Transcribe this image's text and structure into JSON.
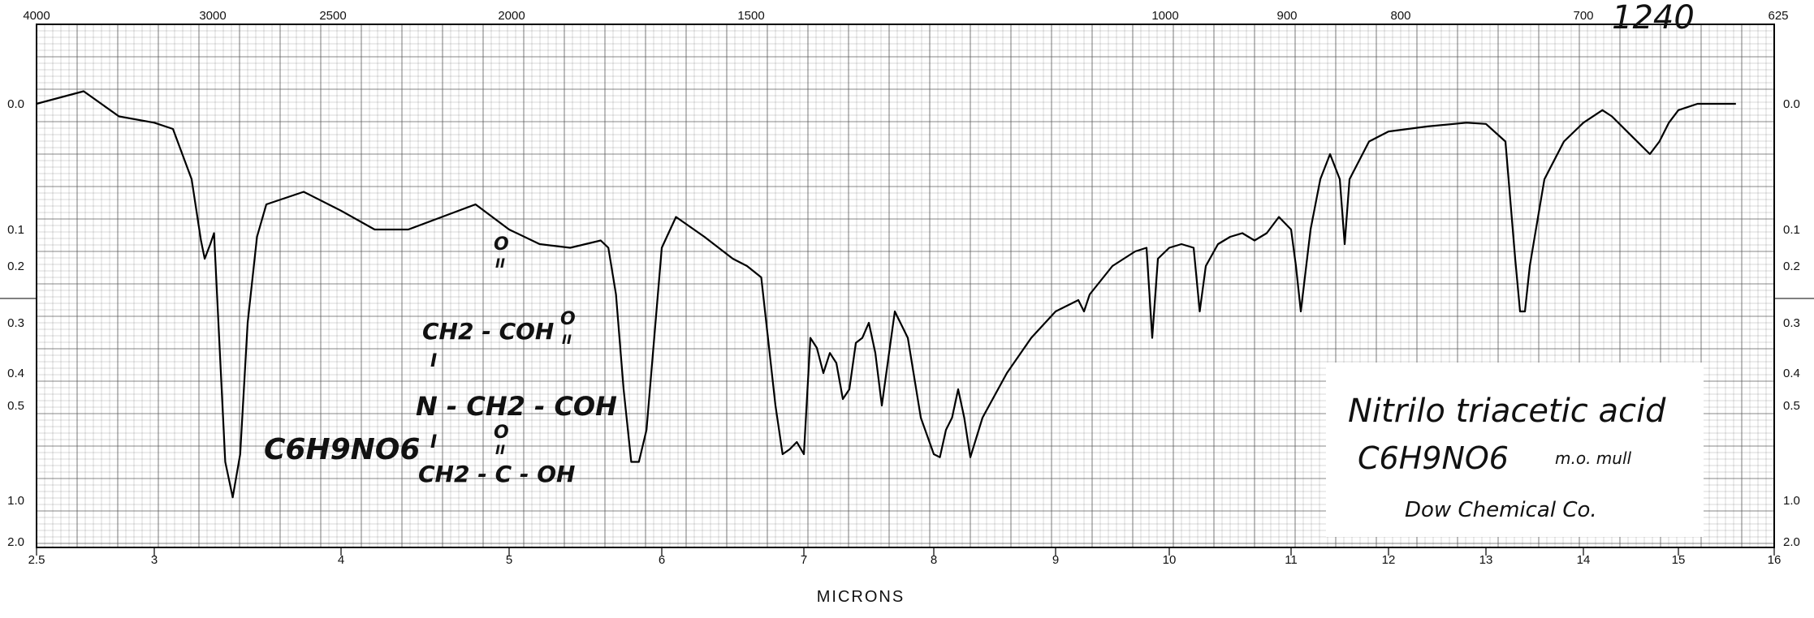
{
  "chart_data": {
    "type": "line",
    "title": "",
    "xlabel": "MICRONS",
    "ylabel": "",
    "x_unit": "micron",
    "xlim": [
      2.5,
      16
    ],
    "ylim": [
      0.0,
      2.0
    ],
    "y_scale": "absorbance (log transmittance)",
    "grid": true,
    "x_ticks": [
      "2.5",
      "3",
      "4",
      "5",
      "6",
      "7",
      "8",
      "9",
      "10",
      "11",
      "12",
      "13",
      "14",
      "15",
      "16"
    ],
    "top_ticks": [
      "4000",
      "3000",
      "2500",
      "2000",
      "1500",
      "1000",
      "900",
      "800",
      "700",
      "625"
    ],
    "y_ticks_left": [
      "0.0",
      "0.1",
      "0.2",
      "0.3",
      "0.4",
      "0.5",
      "1.0",
      "2.0"
    ],
    "y_ticks_right": [
      "0.0",
      "0.1",
      "0.2",
      "0.3",
      "0.4",
      "0.5",
      "1.0",
      "2.0"
    ],
    "corner_note": "1240",
    "series": [
      {
        "x": [
          2.5,
          2.7,
          2.85,
          3.0,
          3.1,
          3.2,
          3.25,
          3.27,
          3.3,
          3.32,
          3.35,
          3.38,
          3.42,
          3.46,
          3.5,
          3.55,
          3.6,
          3.8,
          4.0,
          4.2,
          4.4,
          4.6,
          4.8,
          5.0,
          5.2,
          5.4,
          5.5,
          5.6,
          5.65,
          5.7,
          5.75,
          5.8,
          5.85,
          5.9,
          6.0,
          6.1,
          6.3,
          6.5,
          6.6,
          6.7,
          6.8,
          6.85,
          6.9,
          6.95,
          7.0,
          7.05,
          7.1,
          7.15,
          7.2,
          7.25,
          7.3,
          7.35,
          7.4,
          7.45,
          7.5,
          7.55,
          7.6,
          7.7,
          7.8,
          7.9,
          8.0,
          8.05,
          8.1,
          8.15,
          8.2,
          8.25,
          8.3,
          8.4,
          8.6,
          8.8,
          9.0,
          9.1,
          9.2,
          9.25,
          9.3,
          9.5,
          9.7,
          9.8,
          9.85,
          9.9,
          10.0,
          10.1,
          10.2,
          10.25,
          10.3,
          10.4,
          10.5,
          10.6,
          10.7,
          10.8,
          10.9,
          11.0,
          11.05,
          11.1,
          11.2,
          11.3,
          11.4,
          11.5,
          11.55,
          11.6,
          11.8,
          12.0,
          12.4,
          12.8,
          13.0,
          13.2,
          13.3,
          13.35,
          13.4,
          13.45,
          13.5,
          13.6,
          13.8,
          14.0,
          14.2,
          14.3,
          14.5,
          14.7,
          14.8,
          14.9,
          15.0,
          15.2,
          15.4,
          15.6
        ],
        "y": [
          0.0,
          -0.01,
          0.01,
          0.015,
          0.02,
          0.06,
          0.13,
          0.18,
          0.14,
          0.11,
          0.35,
          0.75,
          0.98,
          0.7,
          0.3,
          0.12,
          0.08,
          0.07,
          0.085,
          0.1,
          0.1,
          0.09,
          0.08,
          0.1,
          0.14,
          0.15,
          0.14,
          0.13,
          0.15,
          0.25,
          0.45,
          0.75,
          0.75,
          0.6,
          0.15,
          0.09,
          0.12,
          0.18,
          0.2,
          0.22,
          0.5,
          0.7,
          0.68,
          0.65,
          0.7,
          0.33,
          0.35,
          0.4,
          0.36,
          0.38,
          0.48,
          0.45,
          0.34,
          0.33,
          0.3,
          0.36,
          0.5,
          0.28,
          0.33,
          0.55,
          0.7,
          0.72,
          0.6,
          0.55,
          0.45,
          0.55,
          0.72,
          0.55,
          0.4,
          0.33,
          0.28,
          0.27,
          0.26,
          0.28,
          0.25,
          0.2,
          0.16,
          0.15,
          0.33,
          0.18,
          0.15,
          0.14,
          0.15,
          0.28,
          0.2,
          0.14,
          0.12,
          0.11,
          0.13,
          0.11,
          0.09,
          0.1,
          0.2,
          0.28,
          0.1,
          0.06,
          0.04,
          0.06,
          0.14,
          0.06,
          0.03,
          0.022,
          0.018,
          0.015,
          0.016,
          0.03,
          0.18,
          0.28,
          0.28,
          0.2,
          0.12,
          0.06,
          0.03,
          0.015,
          0.005,
          0.01,
          0.025,
          0.04,
          0.03,
          0.015,
          0.005,
          0.0,
          0.0,
          0.0
        ]
      }
    ]
  },
  "annotations": {
    "compound_name": "Nitrilo triacetic acid",
    "formula": "C6H9NO6",
    "sample_prep": "m.o. mull",
    "source": "Dow Chemical Co.",
    "handwritten_formula": "C6H9NO6",
    "structure": {
      "top_o": "O",
      "top_dbl": "II",
      "top_branch": "CH2 - COH",
      "bond1": "I",
      "mid_o": "O",
      "mid_dbl": "II",
      "mid_branch": "N - CH2 - COH",
      "bond2": "I",
      "bot_o": "O",
      "bot_dbl": "II",
      "bot_branch": "CH2 - C - OH"
    }
  },
  "colors": {
    "grid": "#555555",
    "trace": "#000000",
    "paper": "#ffffff"
  }
}
